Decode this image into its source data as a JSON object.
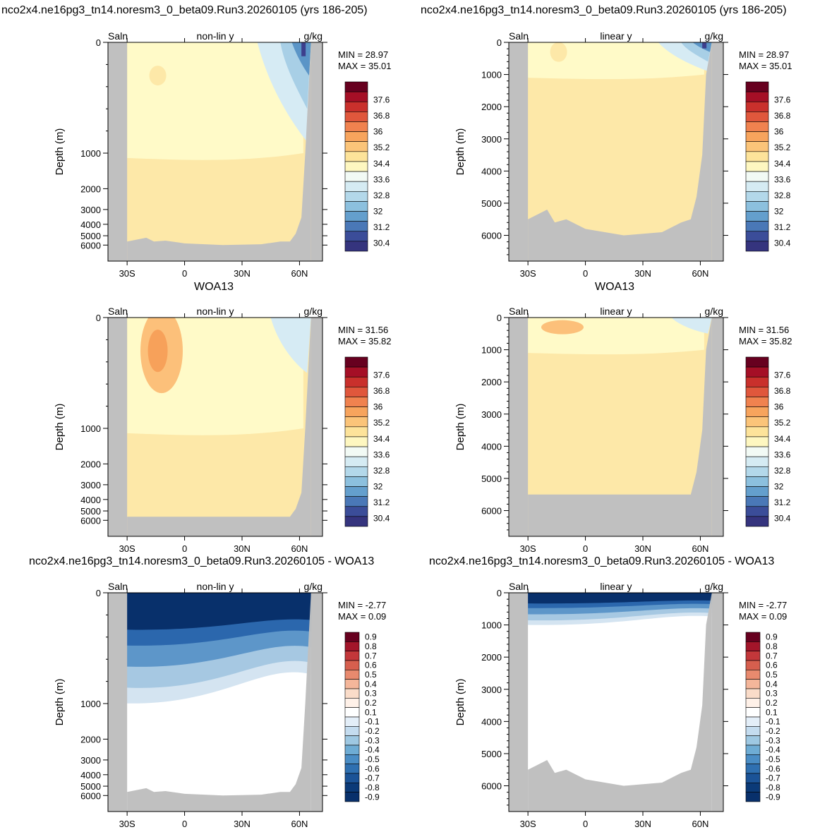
{
  "row_titles": {
    "model": "nco2x4.ne16pg3_tn14.noresm3_0_beta09.Run3.20260105 (yrs 186-205)",
    "obs": "WOA13",
    "diff": "nco2x4.ne16pg3_tn14.noresm3_0_beta09.Run3.20260105 - WOA13"
  },
  "panel_labels": {
    "variable": "Saln",
    "units": "g/kg",
    "nonlin": "non-lin y",
    "linear": "linear y",
    "ylabel": "Depth (m)"
  },
  "x_ticks": [
    "30S",
    "0",
    "30N",
    "60N"
  ],
  "y_ticks_nonlin": [
    "0",
    "1000",
    "2000",
    "3000",
    "4000",
    "5000",
    "6000"
  ],
  "y_ticks_linear": [
    "0",
    "1000",
    "2000",
    "3000",
    "4000",
    "5000",
    "6000"
  ],
  "colorbar_salinity": [
    "37.6",
    "36.8",
    "36",
    "35.2",
    "34.4",
    "33.6",
    "32.8",
    "32",
    "31.2",
    "30.4"
  ],
  "colorbar_diff": [
    "0.9",
    "0.8",
    "0.7",
    "0.6",
    "0.5",
    "0.4",
    "0.3",
    "0.2",
    "0.1",
    "-0.1",
    "-0.2",
    "-0.3",
    "-0.4",
    "-0.5",
    "-0.6",
    "-0.7",
    "-0.8",
    "-0.9"
  ],
  "stats": {
    "model": {
      "min": "MIN =  28.97",
      "max": "MAX =  35.01"
    },
    "obs": {
      "min": "MIN =  31.56",
      "max": "MAX =  35.82"
    },
    "diff": {
      "min": "MIN =  -2.77",
      "max": "MAX =   0.09"
    }
  },
  "colors": {
    "land": "#c0c0c0",
    "sal_bg": "#fde8a8",
    "sal_light": "#fffac8",
    "sal_orange": "#fcc07a",
    "sal_orange2": "#f7a15a",
    "sal_blue1": "#d6ebf4",
    "sal_blue2": "#a8cfe6",
    "sal_blue3": "#5b95c7",
    "sal_blue4": "#3d3f8c",
    "diff_white": "#ffffff",
    "diff_b1": "#d4e4f1",
    "diff_b2": "#a6c8e2",
    "diff_b3": "#5d96c9",
    "diff_b4": "#2b67ad",
    "diff_b5": "#08306b"
  },
  "chart_data": [
    {
      "type": "heatmap",
      "title": "nco2x4.ne16pg3_tn14.noresm3_0_beta09.Run3.20260105 (yrs 186-205)",
      "subtitle": "non-lin y",
      "xlabel": "",
      "ylabel": "Depth (m)",
      "min": 28.97,
      "max": 35.01
    },
    {
      "type": "heatmap",
      "title": "nco2x4.ne16pg3_tn14.noresm3_0_beta09.Run3.20260105 (yrs 186-205)",
      "subtitle": "linear y",
      "xlabel": "",
      "ylabel": "Depth (m)",
      "min": 28.97,
      "max": 35.01
    },
    {
      "type": "heatmap",
      "title": "WOA13",
      "subtitle": "non-lin y",
      "xlabel": "",
      "ylabel": "Depth (m)",
      "min": 31.56,
      "max": 35.82
    },
    {
      "type": "heatmap",
      "title": "WOA13",
      "subtitle": "linear y",
      "xlabel": "",
      "ylabel": "Depth (m)",
      "min": 31.56,
      "max": 35.82
    },
    {
      "type": "heatmap",
      "title": "nco2x4.ne16pg3_tn14.noresm3_0_beta09.Run3.20260105 - WOA13",
      "subtitle": "non-lin y",
      "xlabel": "",
      "ylabel": "Depth (m)",
      "min": -2.77,
      "max": 0.09
    },
    {
      "type": "heatmap",
      "title": "nco2x4.ne16pg3_tn14.noresm3_0_beta09.Run3.20260105 - WOA13",
      "subtitle": "linear y",
      "xlabel": "",
      "ylabel": "Depth (m)",
      "min": -2.77,
      "max": 0.09
    }
  ]
}
